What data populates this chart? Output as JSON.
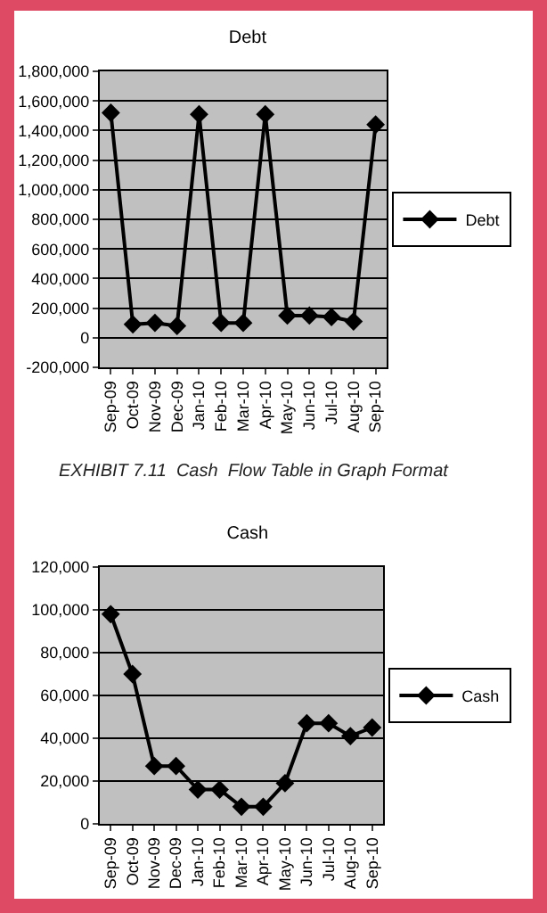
{
  "chart_data": [
    {
      "type": "line",
      "title": "Debt",
      "categories": [
        "Sep-09",
        "Oct-09",
        "Nov-09",
        "Dec-09",
        "Jan-10",
        "Feb-10",
        "Mar-10",
        "Apr-10",
        "May-10",
        "Jun-10",
        "Jul-10",
        "Aug-10",
        "Sep-10"
      ],
      "series": [
        {
          "name": "Debt",
          "color": "#000000",
          "values": [
            1520000,
            90000,
            100000,
            80000,
            1510000,
            100000,
            100000,
            1510000,
            150000,
            150000,
            140000,
            110000,
            1440000
          ]
        }
      ],
      "ylim": [
        -200000,
        1800000
      ],
      "yticks": [
        {
          "value": -200000,
          "label": "-200,000"
        },
        0,
        {
          "value": 200000,
          "label": "200,000"
        },
        {
          "value": 400000,
          "label": "400,000"
        },
        {
          "value": 600000,
          "label": "600,000"
        },
        {
          "value": 800000,
          "label": "800,000"
        },
        {
          "value": 1000000,
          "label": "1,000,000"
        },
        {
          "value": 1200000,
          "label": "1,200,000"
        },
        {
          "value": 1400000,
          "label": "1,400,000"
        },
        {
          "value": 1600000,
          "label": "1,600,000"
        },
        {
          "value": 1800000,
          "label": "1,800,000"
        }
      ],
      "grid": "y",
      "legend": "right",
      "marker": "diamond",
      "line_style": "solid"
    },
    {
      "type": "line",
      "title": "Cash",
      "annotations": [
        "EXHIBIT 7.11  Cash  Flow Table in Graph Format"
      ],
      "categories": [
        "Sep-09",
        "Oct-09",
        "Nov-09",
        "Dec-09",
        "Jan-10",
        "Feb-10",
        "Mar-10",
        "Apr-10",
        "May-10",
        "Jun-10",
        "Jul-10",
        "Aug-10",
        "Sep-10"
      ],
      "series": [
        {
          "name": "Cash",
          "color": "#000000",
          "values": [
            98000,
            70000,
            27000,
            27000,
            16000,
            16000,
            8000,
            8000,
            19000,
            47000,
            47000,
            41000,
            45000
          ]
        }
      ],
      "ylim": [
        0,
        120000
      ],
      "yticks": [
        0,
        {
          "value": 20000,
          "label": "20,000"
        },
        {
          "value": 40000,
          "label": "40,000"
        },
        {
          "value": 60000,
          "label": "60,000"
        },
        {
          "value": 80000,
          "label": "80,000"
        },
        {
          "value": 100000,
          "label": "100,000"
        },
        {
          "value": 120000,
          "label": "120,000"
        }
      ],
      "grid": "y",
      "legend": "right",
      "marker": "diamond",
      "line_style": "solid"
    }
  ]
}
